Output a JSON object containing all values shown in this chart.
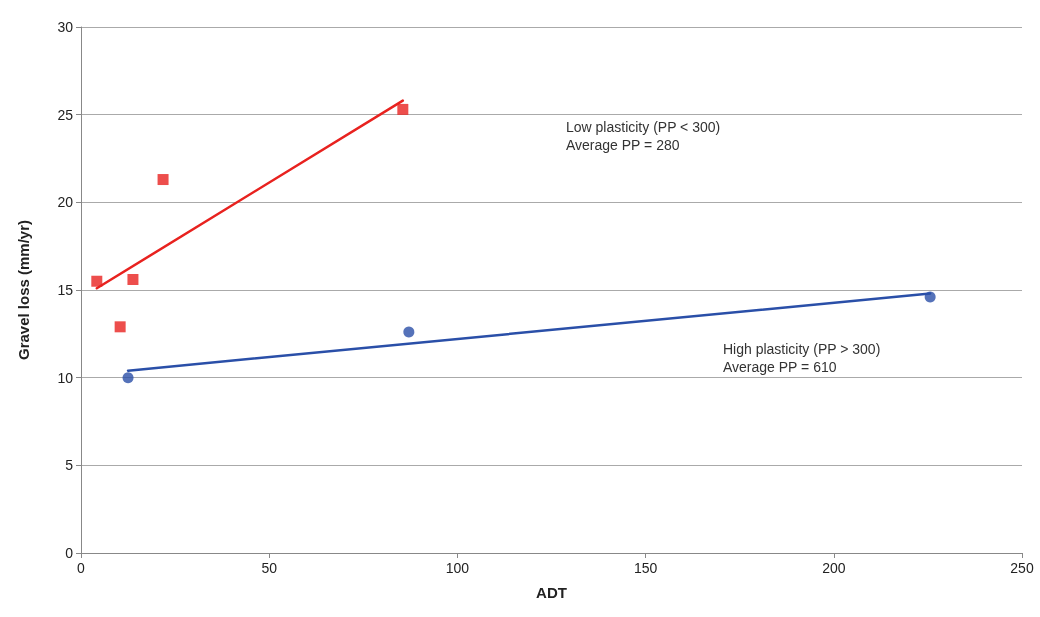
{
  "chart_data": {
    "type": "scatter",
    "xlabel": "ADT",
    "ylabel": "Gravel loss (mm/yr)",
    "xlim": [
      0,
      250
    ],
    "xticks": [
      0,
      50,
      100,
      150,
      200,
      250
    ],
    "ylim": [
      0,
      30
    ],
    "yticks": [
      0,
      5,
      10,
      15,
      20,
      25,
      30
    ],
    "grid": "y",
    "series": [
      {
        "marker": "square",
        "color": "#e8221f",
        "x": [
          4.2,
          10.4,
          13.8,
          21.8,
          85.5
        ],
        "values": [
          15.5,
          12.9,
          15.6,
          21.3,
          25.3
        ]
      },
      {
        "marker": "circle",
        "color": "#2a4fa8",
        "x": [
          12.5,
          87.1,
          225.6
        ],
        "values": [
          10.0,
          12.6,
          14.6
        ]
      },
      {
        "type": "line",
        "marker": "none",
        "line_style": "solid",
        "color": "#e8221f",
        "x": [
          4.2,
          85.5
        ],
        "values": [
          15.1,
          25.8
        ]
      },
      {
        "type": "line",
        "marker": "none",
        "line_style": "solid",
        "color": "#2a4fa8",
        "x": [
          12.5,
          225.6
        ],
        "values": [
          10.4,
          14.8
        ]
      }
    ],
    "annotations": [
      "Low plasticity (PP < 300)\nAverage PP = 280",
      "High plasticity (PP > 300)\nAverage PP = 610"
    ]
  }
}
